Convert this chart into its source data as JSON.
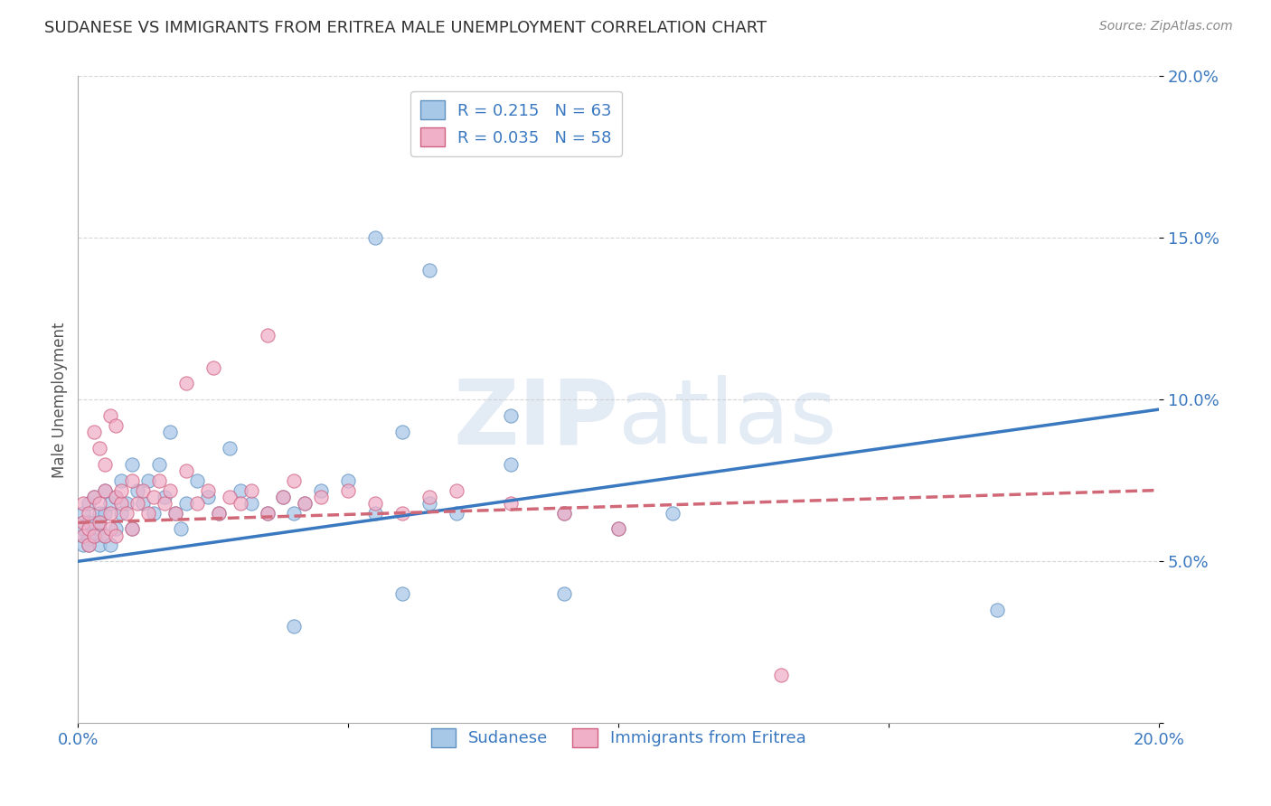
{
  "title": "SUDANESE VS IMMIGRANTS FROM ERITREA MALE UNEMPLOYMENT CORRELATION CHART",
  "source": "Source: ZipAtlas.com",
  "ylabel": "Male Unemployment",
  "xlim": [
    0.0,
    0.2
  ],
  "ylim": [
    0.0,
    0.2
  ],
  "xticks": [
    0.0,
    0.05,
    0.1,
    0.15,
    0.2
  ],
  "yticks": [
    0.0,
    0.05,
    0.1,
    0.15,
    0.2
  ],
  "ytick_labels": [
    "",
    "5.0%",
    "10.0%",
    "15.0%",
    "20.0%"
  ],
  "xtick_labels": [
    "0.0%",
    "",
    "",
    "",
    "20.0%"
  ],
  "series": [
    {
      "name": "Sudanese",
      "R": 0.215,
      "N": 63,
      "color": "#a8c8e8",
      "edge_color": "#6090c0",
      "trend_color": "#3a78c0",
      "trend_style": "solid",
      "trend_x": [
        0.0,
        0.2
      ],
      "trend_y": [
        0.05,
        0.097
      ],
      "x": [
        0.001,
        0.001,
        0.001,
        0.001,
        0.002,
        0.002,
        0.002,
        0.002,
        0.003,
        0.003,
        0.003,
        0.004,
        0.004,
        0.004,
        0.005,
        0.005,
        0.005,
        0.006,
        0.006,
        0.007,
        0.007,
        0.008,
        0.008,
        0.009,
        0.01,
        0.01,
        0.011,
        0.012,
        0.013,
        0.014,
        0.015,
        0.016,
        0.017,
        0.018,
        0.019,
        0.02,
        0.022,
        0.024,
        0.026,
        0.028,
        0.03,
        0.032,
        0.035,
        0.038,
        0.04,
        0.042,
        0.045,
        0.05,
        0.055,
        0.06,
        0.065,
        0.07,
        0.08,
        0.09,
        0.1,
        0.11,
        0.055,
        0.065,
        0.08,
        0.17,
        0.09,
        0.06,
        0.04
      ],
      "y": [
        0.065,
        0.058,
        0.055,
        0.06,
        0.062,
        0.057,
        0.055,
        0.068,
        0.07,
        0.062,
        0.058,
        0.065,
        0.06,
        0.055,
        0.072,
        0.065,
        0.058,
        0.068,
        0.055,
        0.07,
        0.06,
        0.075,
        0.065,
        0.068,
        0.08,
        0.06,
        0.072,
        0.068,
        0.075,
        0.065,
        0.08,
        0.07,
        0.09,
        0.065,
        0.06,
        0.068,
        0.075,
        0.07,
        0.065,
        0.085,
        0.072,
        0.068,
        0.065,
        0.07,
        0.065,
        0.068,
        0.072,
        0.075,
        0.065,
        0.09,
        0.068,
        0.065,
        0.08,
        0.065,
        0.06,
        0.065,
        0.15,
        0.14,
        0.095,
        0.035,
        0.04,
        0.04,
        0.03
      ]
    },
    {
      "name": "Immigrants from Eritrea",
      "R": 0.035,
      "N": 58,
      "color": "#f0b0c8",
      "edge_color": "#d06080",
      "trend_color": "#d06878",
      "trend_style": "dashed",
      "trend_x": [
        0.0,
        0.2
      ],
      "trend_y": [
        0.062,
        0.072
      ],
      "x": [
        0.001,
        0.001,
        0.001,
        0.002,
        0.002,
        0.002,
        0.003,
        0.003,
        0.004,
        0.004,
        0.005,
        0.005,
        0.006,
        0.006,
        0.007,
        0.007,
        0.008,
        0.008,
        0.009,
        0.01,
        0.01,
        0.011,
        0.012,
        0.013,
        0.014,
        0.015,
        0.016,
        0.017,
        0.018,
        0.02,
        0.022,
        0.024,
        0.026,
        0.028,
        0.03,
        0.032,
        0.035,
        0.038,
        0.04,
        0.042,
        0.045,
        0.05,
        0.055,
        0.06,
        0.065,
        0.07,
        0.08,
        0.09,
        0.1,
        0.003,
        0.004,
        0.005,
        0.006,
        0.007,
        0.02,
        0.025,
        0.035,
        0.13
      ],
      "y": [
        0.068,
        0.062,
        0.058,
        0.065,
        0.06,
        0.055,
        0.07,
        0.058,
        0.068,
        0.062,
        0.072,
        0.058,
        0.065,
        0.06,
        0.07,
        0.058,
        0.068,
        0.072,
        0.065,
        0.075,
        0.06,
        0.068,
        0.072,
        0.065,
        0.07,
        0.075,
        0.068,
        0.072,
        0.065,
        0.078,
        0.068,
        0.072,
        0.065,
        0.07,
        0.068,
        0.072,
        0.065,
        0.07,
        0.075,
        0.068,
        0.07,
        0.072,
        0.068,
        0.065,
        0.07,
        0.072,
        0.068,
        0.065,
        0.06,
        0.09,
        0.085,
        0.08,
        0.095,
        0.092,
        0.105,
        0.11,
        0.12,
        0.015
      ]
    }
  ],
  "watermark_zip": "ZIP",
  "watermark_atlas": "atlas",
  "background_color": "#ffffff",
  "grid_color": "#cccccc",
  "title_color": "#333333",
  "axis_label_color": "#555555",
  "tick_color": "#3a78c0",
  "source_color": "#888888"
}
